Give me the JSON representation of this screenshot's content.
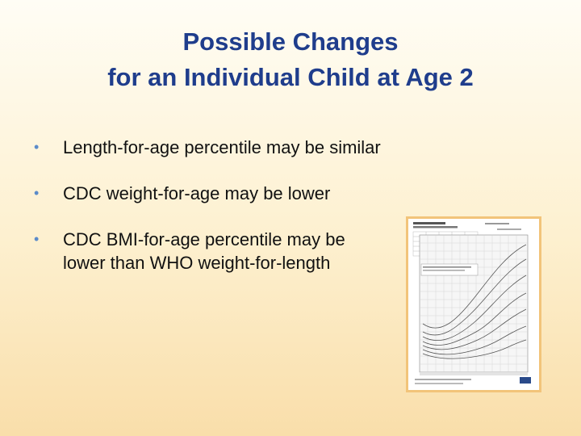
{
  "slide": {
    "title_lines": [
      "Possible Changes",
      "for an Individual Child at Age 2"
    ],
    "bullets": [
      {
        "text": "Length-for-age percentile may be similar"
      },
      {
        "text": "CDC weight-for-age may be lower"
      },
      {
        "text": "CDC BMI-for-age percentile may be lower than WHO weight-for-length"
      }
    ],
    "accent_color": "#1f3d8c",
    "bullet_color": "#5b8bc9",
    "thumbnail": {
      "icon": "growth-chart-thumbnail",
      "border_color": "#f2c47a"
    }
  }
}
